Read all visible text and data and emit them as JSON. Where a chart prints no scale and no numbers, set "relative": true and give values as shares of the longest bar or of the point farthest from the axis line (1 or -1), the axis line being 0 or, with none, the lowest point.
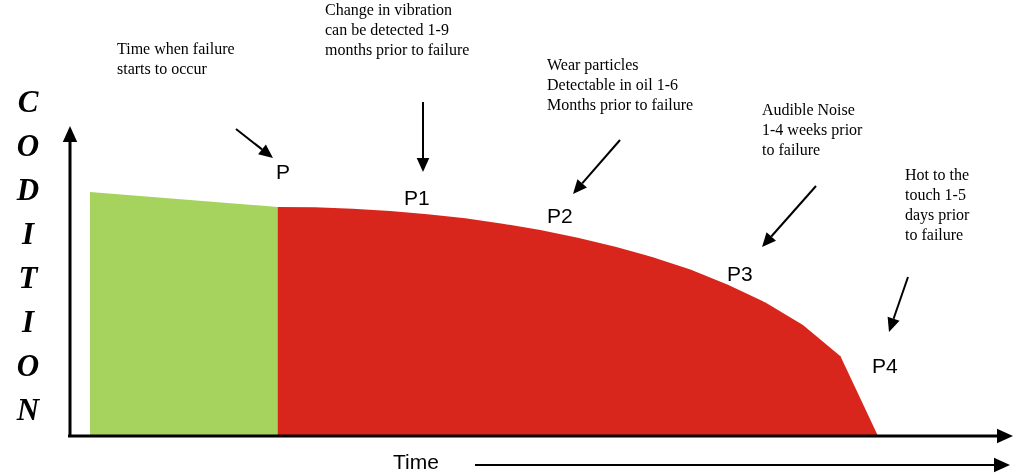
{
  "chart_data": {
    "type": "area",
    "relative": true,
    "xlabel": "Time",
    "ylabel": "CODITION",
    "categories": [
      null,
      null,
      null,
      null,
      null,
      null,
      null,
      null,
      null,
      null,
      null,
      null,
      null,
      null,
      null,
      null,
      null,
      null,
      null,
      null,
      null,
      null
    ],
    "series": [
      {
        "color": "#a6d35e",
        "values": [
          1,
          0.988,
          0.975,
          0.963,
          0.951,
          0.939,
          null,
          null,
          null,
          null,
          null,
          null,
          null,
          null,
          null,
          null,
          null,
          null,
          null,
          null,
          null,
          null
        ]
      },
      {
        "color": "#d9261c",
        "values": [
          null,
          null,
          null,
          null,
          null,
          0.939,
          0.937,
          0.931,
          0.922,
          0.909,
          0.892,
          0.87,
          0.844,
          0.813,
          0.776,
          0.733,
          0.682,
          0.62,
          0.547,
          0.455,
          0.327,
          0
        ]
      }
    ],
    "annotations": [
      "Time when failure\nstarts to occur",
      "Change in vibration\ncan be detected 1-9\nmonths prior to failure",
      "Wear particles\nDetectable in oil 1-6\nMonths prior to failure",
      "Audible Noise\n1-4 weeks prior\nto failure",
      "Hot to the\ntouch 1-5\ndays prior\nto failure",
      "P",
      "P1",
      "P2",
      "P3",
      "P4"
    ],
    "grid": false,
    "marker": "none"
  }
}
